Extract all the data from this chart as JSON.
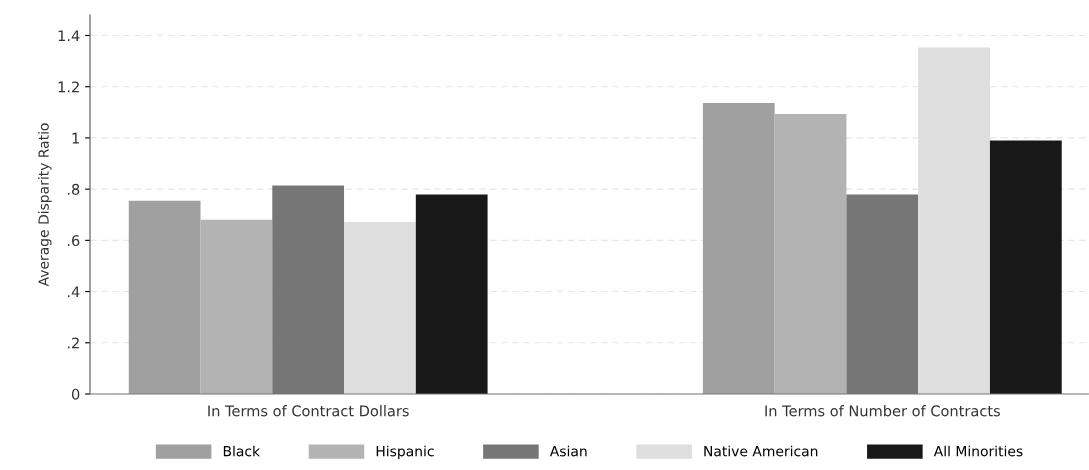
{
  "chart_data": {
    "type": "bar",
    "ylabel": "Average Disparity Ratio",
    "categories": [
      "In Terms of Contract Dollars",
      "In Terms of Number of Contracts"
    ],
    "series": [
      {
        "name": "Black",
        "color": "#a0a0a0",
        "values": [
          0.755,
          1.136
        ]
      },
      {
        "name": "Hispanic",
        "color": "#b3b3b3",
        "values": [
          0.68,
          1.093
        ]
      },
      {
        "name": "Asian",
        "color": "#767676",
        "values": [
          0.814,
          0.779
        ]
      },
      {
        "name": "Native American",
        "color": "#dedede",
        "values": [
          0.672,
          1.353
        ]
      },
      {
        "name": "All Minorities",
        "color": "#181818",
        "values": [
          0.779,
          0.99
        ]
      }
    ],
    "ylim": [
      0,
      1.48
    ],
    "yticks": [
      0,
      {
        "value": 0.2,
        "label": ".2"
      },
      {
        "value": 0.4,
        "label": ".4"
      },
      {
        "value": 0.6,
        "label": ".6"
      },
      {
        "value": 0.8,
        "label": ".8"
      },
      1,
      1.2,
      1.4
    ],
    "grid": "y",
    "legend": "bottom"
  }
}
